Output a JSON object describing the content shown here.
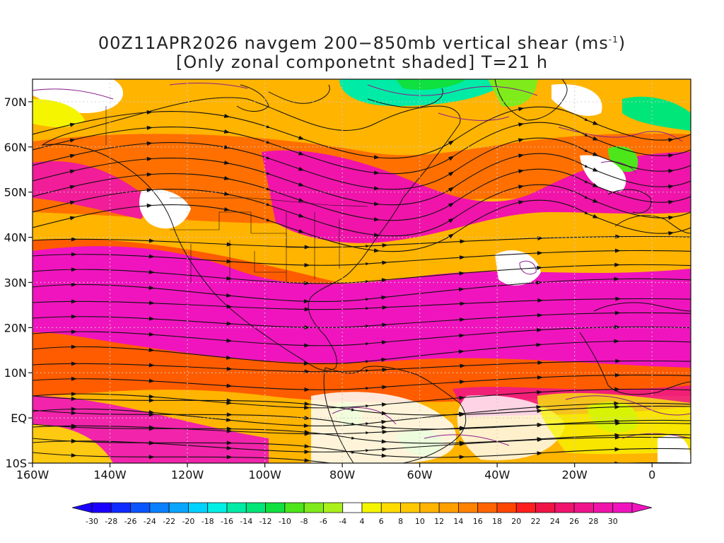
{
  "title": {
    "line1_main": "00Z11APR2026 navgem 200−850mb vertical shear (ms",
    "line1_sup": "-1",
    "line1_end": ")",
    "line2": "[Only zonal componetnt shaded] T=21 h"
  },
  "map": {
    "lon_range": [
      -160,
      10
    ],
    "lat_range": [
      -10,
      75
    ],
    "x_ticks": [
      {
        "lon": -160,
        "label": "160W"
      },
      {
        "lon": -140,
        "label": "140W"
      },
      {
        "lon": -120,
        "label": "120W"
      },
      {
        "lon": -100,
        "label": "100W"
      },
      {
        "lon": -80,
        "label": "80W"
      },
      {
        "lon": -60,
        "label": "60W"
      },
      {
        "lon": -40,
        "label": "40W"
      },
      {
        "lon": -20,
        "label": "20W"
      },
      {
        "lon": 0,
        "label": "0"
      }
    ],
    "y_ticks": [
      {
        "lat": 70,
        "label": "70N"
      },
      {
        "lat": 60,
        "label": "60N"
      },
      {
        "lat": 50,
        "label": "50N"
      },
      {
        "lat": 40,
        "label": "40N"
      },
      {
        "lat": 30,
        "label": "30N"
      },
      {
        "lat": 20,
        "label": "20N"
      },
      {
        "lat": 10,
        "label": "10N"
      },
      {
        "lat": 0,
        "label": "EQ"
      },
      {
        "lat": -10,
        "label": "10S"
      }
    ],
    "grid": "dotted"
  },
  "colorbar": {
    "values": [
      "-30",
      "-28",
      "-26",
      "-24",
      "-22",
      "-20",
      "-18",
      "-16",
      "-14",
      "-12",
      "-10",
      "-8",
      "-6",
      "-4",
      "4",
      "6",
      "8",
      "10",
      "12",
      "14",
      "16",
      "18",
      "20",
      "22",
      "24",
      "26",
      "28",
      "30"
    ],
    "colors": [
      "#1a00ff",
      "#0f2aff",
      "#0a55ff",
      "#0a80ff",
      "#0aa5ff",
      "#00d2ff",
      "#00f0e6",
      "#00eba5",
      "#00e678",
      "#10e040",
      "#4de61a",
      "#80eb1a",
      "#aaf01a",
      "#ffffff",
      "#f5f500",
      "#ffdc00",
      "#ffc800",
      "#ffb400",
      "#ffa000",
      "#ff8200",
      "#ff6400",
      "#ff4600",
      "#ff1e1e",
      "#f01446",
      "#f0146e",
      "#f0148c",
      "#f014aa",
      "#f014be"
    ]
  },
  "palette": {
    "land_outline": "#111111",
    "isotach": "#8a1e8c",
    "streamline": "#111111"
  }
}
